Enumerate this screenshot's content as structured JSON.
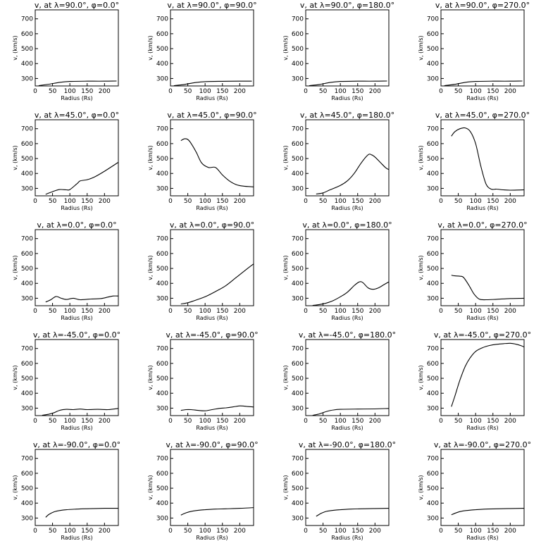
{
  "chart_data": [
    {
      "type": "line",
      "title": "v, at λ=90.0°, φ=0.0°",
      "xlabel": "Radius (Rs)",
      "ylabel": "v, (km/s)",
      "xlim": [
        0,
        240
      ],
      "ylim": [
        250,
        760
      ],
      "xticks": [
        0,
        50,
        100,
        150,
        200
      ],
      "yticks": [
        300,
        400,
        500,
        600,
        700
      ],
      "x": [
        10,
        40,
        70,
        100,
        150,
        200,
        235
      ],
      "y": [
        252,
        262,
        274,
        280,
        282,
        282,
        283
      ]
    },
    {
      "type": "line",
      "title": "v, at λ=90.0°, φ=90.0°",
      "xlabel": "Radius (Rs)",
      "ylabel": "v, (km/s)",
      "xlim": [
        0,
        240
      ],
      "ylim": [
        250,
        760
      ],
      "xticks": [
        0,
        50,
        100,
        150,
        200
      ],
      "yticks": [
        300,
        400,
        500,
        600,
        700
      ],
      "x": [
        10,
        40,
        70,
        100,
        150,
        200,
        235
      ],
      "y": [
        252,
        260,
        272,
        279,
        281,
        282,
        282
      ]
    },
    {
      "type": "line",
      "title": "v, at λ=90.0°, φ=180.0°",
      "xlabel": "Radius (Rs)",
      "ylabel": "v, (km/s)",
      "xlim": [
        0,
        240
      ],
      "ylim": [
        250,
        760
      ],
      "xticks": [
        0,
        50,
        100,
        150,
        200
      ],
      "yticks": [
        300,
        400,
        500,
        600,
        700
      ],
      "x": [
        10,
        40,
        70,
        100,
        150,
        200,
        235
      ],
      "y": [
        252,
        260,
        273,
        280,
        282,
        282,
        283
      ]
    },
    {
      "type": "line",
      "title": "v, at λ=90.0°, φ=270.0°",
      "xlabel": "Radius (Rs)",
      "ylabel": "v, (km/s)",
      "xlim": [
        0,
        240
      ],
      "ylim": [
        250,
        760
      ],
      "xticks": [
        0,
        50,
        100,
        150,
        200
      ],
      "yticks": [
        300,
        400,
        500,
        600,
        700
      ],
      "x": [
        10,
        40,
        70,
        100,
        150,
        200,
        235
      ],
      "y": [
        252,
        261,
        274,
        280,
        282,
        282,
        283
      ]
    },
    {
      "type": "line",
      "title": "v, at λ=45.0°, φ=0.0°",
      "xlabel": "Radius (Rs)",
      "ylabel": "v, (km/s)",
      "xlim": [
        0,
        240
      ],
      "ylim": [
        250,
        760
      ],
      "xticks": [
        0,
        50,
        100,
        150,
        200
      ],
      "yticks": [
        300,
        400,
        500,
        600,
        700
      ],
      "x": [
        30,
        50,
        70,
        90,
        100,
        120,
        130,
        150,
        170,
        200,
        240
      ],
      "y": [
        260,
        278,
        292,
        290,
        292,
        330,
        350,
        358,
        375,
        415,
        475
      ]
    },
    {
      "type": "line",
      "title": "v, at λ=45.0°, φ=90.0°",
      "xlabel": "Radius (Rs)",
      "ylabel": "v, (km/s)",
      "xlim": [
        0,
        240
      ],
      "ylim": [
        250,
        760
      ],
      "xticks": [
        0,
        50,
        100,
        150,
        200
      ],
      "yticks": [
        300,
        400,
        500,
        600,
        700
      ],
      "x": [
        30,
        40,
        50,
        60,
        75,
        90,
        110,
        130,
        150,
        170,
        190,
        210,
        240
      ],
      "y": [
        620,
        632,
        628,
        600,
        540,
        470,
        440,
        440,
        390,
        350,
        325,
        315,
        310
      ]
    },
    {
      "type": "line",
      "title": "v, at λ=45.0°, φ=180.0°",
      "xlabel": "Radius (Rs)",
      "ylabel": "v, (km/s)",
      "xlim": [
        0,
        240
      ],
      "ylim": [
        250,
        760
      ],
      "xticks": [
        0,
        50,
        100,
        150,
        200
      ],
      "yticks": [
        300,
        400,
        500,
        600,
        700
      ],
      "x": [
        30,
        50,
        70,
        100,
        120,
        140,
        160,
        180,
        190,
        200,
        215,
        230,
        240
      ],
      "y": [
        262,
        270,
        290,
        320,
        350,
        400,
        470,
        525,
        525,
        510,
        475,
        440,
        425
      ]
    },
    {
      "type": "line",
      "title": "v, at λ=45.0°, φ=270.0°",
      "xlabel": "Radius (Rs)",
      "ylabel": "v, (km/s)",
      "xlim": [
        0,
        240
      ],
      "ylim": [
        250,
        760
      ],
      "xticks": [
        0,
        50,
        100,
        150,
        200
      ],
      "yticks": [
        300,
        400,
        500,
        600,
        700
      ],
      "x": [
        30,
        40,
        55,
        70,
        85,
        100,
        115,
        130,
        145,
        160,
        180,
        200,
        240
      ],
      "y": [
        650,
        680,
        700,
        705,
        680,
        600,
        450,
        330,
        295,
        295,
        290,
        288,
        290
      ]
    },
    {
      "type": "line",
      "title": "v, at λ=0.0°, φ=0.0°",
      "xlabel": "Radius (Rs)",
      "ylabel": "v, (km/s)",
      "xlim": [
        0,
        240
      ],
      "ylim": [
        250,
        760
      ],
      "xticks": [
        0,
        50,
        100,
        150,
        200
      ],
      "yticks": [
        300,
        400,
        500,
        600,
        700
      ],
      "x": [
        30,
        45,
        60,
        75,
        90,
        110,
        130,
        160,
        190,
        210,
        225,
        240
      ],
      "y": [
        275,
        290,
        312,
        300,
        292,
        300,
        290,
        295,
        298,
        308,
        315,
        315
      ]
    },
    {
      "type": "line",
      "title": "v, at λ=0.0°, φ=90.0°",
      "xlabel": "Radius (Rs)",
      "ylabel": "v, (km/s)",
      "xlim": [
        0,
        240
      ],
      "ylim": [
        250,
        760
      ],
      "xticks": [
        0,
        50,
        100,
        150,
        200
      ],
      "yticks": [
        300,
        400,
        500,
        600,
        700
      ],
      "x": [
        30,
        50,
        70,
        100,
        130,
        160,
        190,
        220,
        240
      ],
      "y": [
        262,
        270,
        285,
        310,
        345,
        385,
        440,
        495,
        530
      ]
    },
    {
      "type": "line",
      "title": "v, at λ=0.0°, φ=180.0°",
      "xlabel": "Radius (Rs)",
      "ylabel": "v, (km/s)",
      "xlim": [
        0,
        240
      ],
      "ylim": [
        250,
        760
      ],
      "xticks": [
        0,
        50,
        100,
        150,
        200
      ],
      "yticks": [
        300,
        400,
        500,
        600,
        700
      ],
      "x": [
        20,
        40,
        60,
        80,
        100,
        120,
        140,
        155,
        165,
        180,
        195,
        210,
        225,
        240
      ],
      "y": [
        252,
        258,
        268,
        285,
        310,
        340,
        385,
        410,
        405,
        370,
        360,
        370,
        390,
        410
      ]
    },
    {
      "type": "line",
      "title": "v, at λ=0.0°, φ=270.0°",
      "xlabel": "Radius (Rs)",
      "ylabel": "v, (km/s)",
      "xlim": [
        0,
        240
      ],
      "ylim": [
        250,
        760
      ],
      "xticks": [
        0,
        50,
        100,
        150,
        200
      ],
      "yticks": [
        300,
        400,
        500,
        600,
        700
      ],
      "x": [
        30,
        40,
        55,
        65,
        80,
        95,
        110,
        130,
        160,
        200,
        240
      ],
      "y": [
        455,
        450,
        448,
        440,
        390,
        330,
        295,
        290,
        293,
        298,
        300
      ]
    },
    {
      "type": "line",
      "title": "v, at λ=-45.0°, φ=0.0°",
      "xlabel": "Radius (Rs)",
      "ylabel": "v, (km/s)",
      "xlim": [
        0,
        240
      ],
      "ylim": [
        250,
        760
      ],
      "xticks": [
        0,
        50,
        100,
        150,
        200
      ],
      "yticks": [
        300,
        400,
        500,
        600,
        700
      ],
      "x": [
        20,
        40,
        55,
        70,
        90,
        110,
        130,
        150,
        180,
        210,
        240
      ],
      "y": [
        252,
        260,
        270,
        285,
        292,
        290,
        294,
        290,
        292,
        290,
        298
      ]
    },
    {
      "type": "line",
      "title": "v, at λ=-45.0°, φ=90.0°",
      "xlabel": "Radius (Rs)",
      "ylabel": "v, (km/s)",
      "xlim": [
        0,
        240
      ],
      "ylim": [
        250,
        760
      ],
      "xticks": [
        0,
        50,
        100,
        150,
        200
      ],
      "yticks": [
        300,
        400,
        500,
        600,
        700
      ],
      "x": [
        30,
        45,
        60,
        80,
        100,
        120,
        140,
        160,
        180,
        200,
        220,
        240
      ],
      "y": [
        285,
        290,
        290,
        285,
        282,
        290,
        298,
        302,
        308,
        315,
        312,
        308
      ]
    },
    {
      "type": "line",
      "title": "v, at λ=-45.0°, φ=180.0°",
      "xlabel": "Radius (Rs)",
      "ylabel": "v, (km/s)",
      "xlim": [
        0,
        240
      ],
      "ylim": [
        250,
        760
      ],
      "xticks": [
        0,
        50,
        100,
        150,
        200
      ],
      "yticks": [
        300,
        400,
        500,
        600,
        700
      ],
      "x": [
        20,
        40,
        60,
        80,
        100,
        150,
        200,
        240
      ],
      "y": [
        252,
        262,
        278,
        288,
        292,
        294,
        295,
        298
      ]
    },
    {
      "type": "line",
      "title": "v, at λ=-45.0°, φ=270.0°",
      "xlabel": "Radius (Rs)",
      "ylabel": "v, (km/s)",
      "xlim": [
        0,
        240
      ],
      "ylim": [
        250,
        760
      ],
      "xticks": [
        0,
        50,
        100,
        150,
        200
      ],
      "yticks": [
        300,
        400,
        500,
        600,
        700
      ],
      "x": [
        30,
        40,
        55,
        70,
        85,
        100,
        120,
        140,
        160,
        180,
        200,
        215,
        230,
        240
      ],
      "y": [
        310,
        380,
        490,
        580,
        640,
        680,
        705,
        720,
        728,
        732,
        735,
        730,
        720,
        710
      ]
    },
    {
      "type": "line",
      "title": "v, at λ=-90.0°, φ=0.0°",
      "xlabel": "Radius (Rs)",
      "ylabel": "v, (km/s)",
      "xlim": [
        0,
        240
      ],
      "ylim": [
        250,
        760
      ],
      "xticks": [
        0,
        50,
        100,
        150,
        200
      ],
      "yticks": [
        300,
        400,
        500,
        600,
        700
      ],
      "x": [
        30,
        40,
        55,
        70,
        90,
        120,
        160,
        200,
        240
      ],
      "y": [
        305,
        325,
        342,
        350,
        356,
        360,
        363,
        365,
        365
      ]
    },
    {
      "type": "line",
      "title": "v, at λ=-90.0°, φ=90.0°",
      "xlabel": "Radius (Rs)",
      "ylabel": "v, (km/s)",
      "xlim": [
        0,
        240
      ],
      "ylim": [
        250,
        760
      ],
      "xticks": [
        0,
        50,
        100,
        150,
        200
      ],
      "yticks": [
        300,
        400,
        500,
        600,
        700
      ],
      "x": [
        30,
        45,
        60,
        80,
        100,
        130,
        160,
        200,
        240
      ],
      "y": [
        320,
        335,
        345,
        352,
        356,
        360,
        362,
        365,
        370
      ]
    },
    {
      "type": "line",
      "title": "v, at λ=-90.0°, φ=180.0°",
      "xlabel": "Radius (Rs)",
      "ylabel": "v, (km/s)",
      "xlim": [
        0,
        240
      ],
      "ylim": [
        250,
        760
      ],
      "xticks": [
        0,
        50,
        100,
        150,
        200
      ],
      "yticks": [
        300,
        400,
        500,
        600,
        700
      ],
      "x": [
        30,
        45,
        60,
        80,
        100,
        130,
        160,
        200,
        240
      ],
      "y": [
        312,
        332,
        345,
        352,
        356,
        360,
        362,
        364,
        365
      ]
    },
    {
      "type": "line",
      "title": "v, at λ=-90.0°, φ=270.0°",
      "xlabel": "Radius (Rs)",
      "ylabel": "v, (km/s)",
      "xlim": [
        0,
        240
      ],
      "ylim": [
        250,
        760
      ],
      "xticks": [
        0,
        50,
        100,
        150,
        200
      ],
      "yticks": [
        300,
        400,
        500,
        600,
        700
      ],
      "x": [
        30,
        45,
        60,
        80,
        100,
        130,
        160,
        200,
        240
      ],
      "y": [
        322,
        336,
        346,
        352,
        356,
        360,
        362,
        364,
        365
      ]
    }
  ]
}
